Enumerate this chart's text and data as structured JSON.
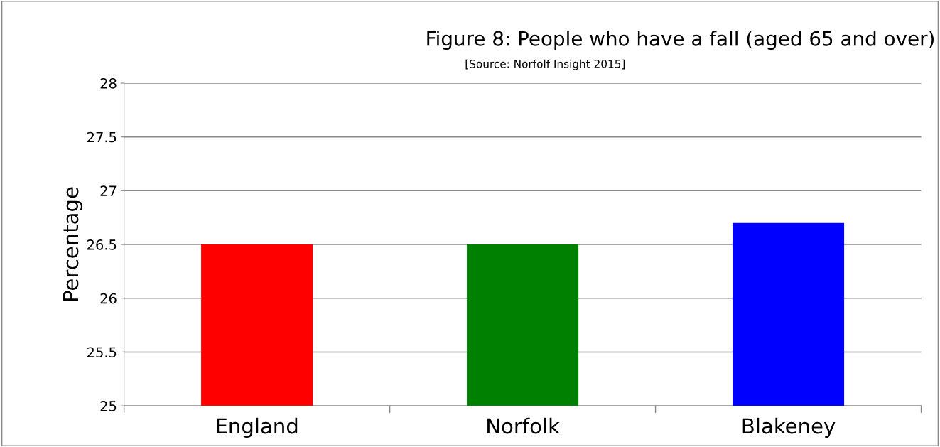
{
  "chart_data": {
    "type": "bar",
    "title": "Figure 8: People who have a fall (aged 65 and over)",
    "annotations": [
      "[Source: Norfolf Insight 2015]"
    ],
    "ylabel": "Percentage",
    "categories": [
      "England",
      "Norfolk",
      "Blakeney"
    ],
    "values": [
      26.5,
      26.5,
      26.7
    ],
    "colors": [
      "#ff0000",
      "#008000",
      "#0000ff"
    ],
    "ylim": [
      25,
      28
    ],
    "yticks": [
      25,
      25.5,
      26,
      26.5,
      27,
      27.5,
      28
    ],
    "grid": "y",
    "legend": false
  }
}
